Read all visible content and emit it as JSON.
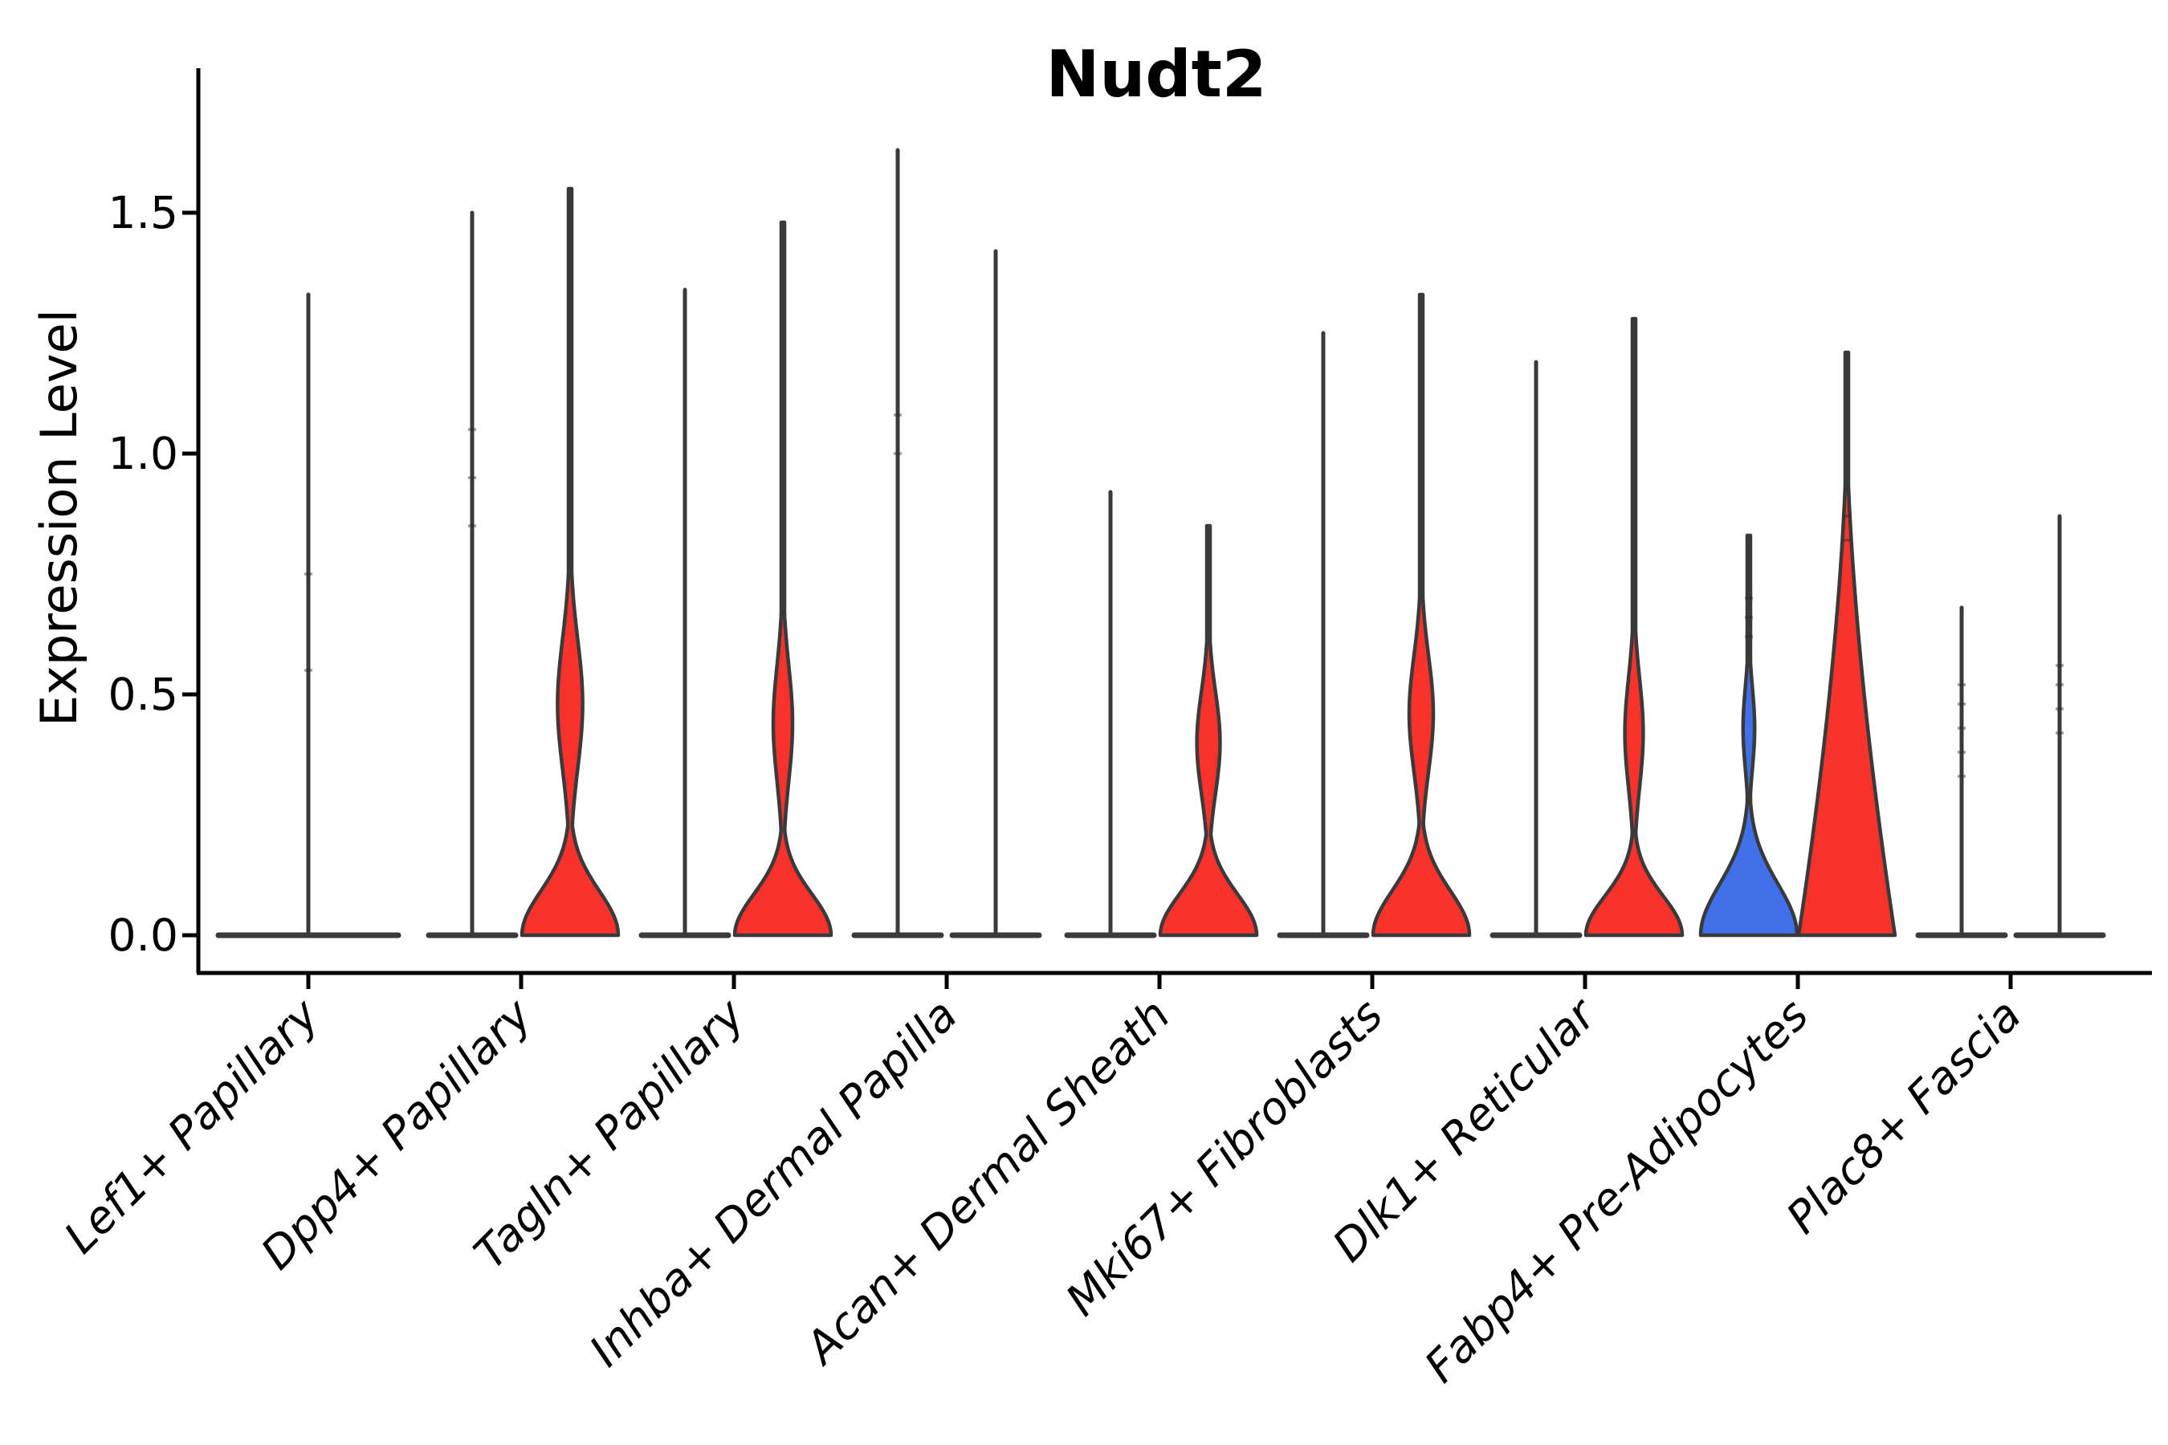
{
  "title": "Nudt2",
  "y_axis": {
    "label": "Expression Level",
    "ticks": [
      "0.0",
      "0.5",
      "1.0",
      "1.5"
    ],
    "tick_values": [
      0.0,
      0.5,
      1.0,
      1.5
    ]
  },
  "colors": {
    "red": "#F9322C",
    "blue": "#4170EB",
    "outline": "#3A3A3A",
    "axis": "#000000"
  },
  "chart_data": {
    "type": "violin",
    "title": "Nudt2",
    "xlabel": "",
    "ylabel": "Expression Level",
    "ylim": [
      0,
      1.8
    ],
    "yticks": [
      0.0,
      0.5,
      1.0,
      1.5
    ],
    "grid": false,
    "legend": "none",
    "groups_per_category": 2,
    "description": "Split violin plot of Nudt2 expression per fibroblast cluster; most cells at 0 (flat violins with outlier spikes), some clusters show a low-expression bulge.",
    "categories": [
      {
        "label": "Lef1+ Papillary",
        "violins": [
          {
            "group": "full",
            "kind": "flat",
            "fill": "none",
            "max": 1.33,
            "points": [
              0.55,
              0.75
            ]
          }
        ]
      },
      {
        "label": "Dpp4+ Papillary",
        "violins": [
          {
            "group": "left",
            "kind": "flat",
            "fill": "none",
            "max": 1.5,
            "points": [
              0.85,
              0.95,
              1.05
            ]
          },
          {
            "group": "right",
            "kind": "bulge",
            "fill": "red",
            "max": 1.55,
            "bulge_center": 0.48,
            "bulge_sd": 0.19,
            "bulge_halfwidth": 0.26,
            "base_sd": 0.13
          }
        ]
      },
      {
        "label": "Tagln+ Papillary",
        "violins": [
          {
            "group": "left",
            "kind": "flat",
            "fill": "none",
            "max": 1.34,
            "points": []
          },
          {
            "group": "right",
            "kind": "bulge",
            "fill": "red",
            "max": 1.48,
            "bulge_center": 0.44,
            "bulge_sd": 0.17,
            "bulge_halfwidth": 0.2,
            "base_sd": 0.12
          }
        ]
      },
      {
        "label": "Inhba+ Dermal Papilla",
        "violins": [
          {
            "group": "left",
            "kind": "flat",
            "fill": "none",
            "max": 1.63,
            "points": [
              1.0,
              1.08
            ]
          },
          {
            "group": "right",
            "kind": "flat",
            "fill": "none",
            "max": 1.42,
            "points": []
          }
        ]
      },
      {
        "label": "Acan+ Dermal Sheath",
        "violins": [
          {
            "group": "left",
            "kind": "flat",
            "fill": "none",
            "max": 0.92,
            "points": []
          },
          {
            "group": "right",
            "kind": "bulge",
            "fill": "red",
            "max": 0.85,
            "bulge_center": 0.4,
            "bulge_sd": 0.15,
            "bulge_halfwidth": 0.24,
            "base_sd": 0.12
          }
        ]
      },
      {
        "label": "Mki67+ Fibroblasts",
        "violins": [
          {
            "group": "left",
            "kind": "flat",
            "fill": "none",
            "max": 1.25,
            "points": []
          },
          {
            "group": "right",
            "kind": "bulge",
            "fill": "red",
            "max": 1.33,
            "bulge_center": 0.46,
            "bulge_sd": 0.17,
            "bulge_halfwidth": 0.25,
            "base_sd": 0.13
          }
        ]
      },
      {
        "label": "Dlk1+ Reticular",
        "violins": [
          {
            "group": "left",
            "kind": "flat",
            "fill": "none",
            "max": 1.19,
            "points": []
          },
          {
            "group": "right",
            "kind": "bulge",
            "fill": "red",
            "max": 1.28,
            "bulge_center": 0.42,
            "bulge_sd": 0.16,
            "bulge_halfwidth": 0.19,
            "base_sd": 0.115
          }
        ]
      },
      {
        "label": "Fabp4+ Pre-Adipocytes",
        "violins": [
          {
            "group": "left",
            "kind": "bulge",
            "fill": "blue",
            "max": 0.83,
            "bulge_center": 0.43,
            "bulge_sd": 0.12,
            "bulge_halfwidth": 0.12,
            "base_sd": 0.15,
            "points": [
              0.62,
              0.66,
              0.7
            ]
          },
          {
            "group": "right",
            "kind": "cone",
            "fill": "red",
            "max": 1.21,
            "tip": 1.06,
            "power": 1.6,
            "points": [
              0.82,
              0.87
            ]
          }
        ]
      },
      {
        "label": "Plac8+ Fascia",
        "violins": [
          {
            "group": "left",
            "kind": "flat",
            "fill": "none",
            "max": 0.68,
            "points": [
              0.33,
              0.38,
              0.43,
              0.48,
              0.52
            ]
          },
          {
            "group": "right",
            "kind": "flat",
            "fill": "none",
            "max": 0.87,
            "points": [
              0.42,
              0.47,
              0.52,
              0.56
            ]
          }
        ]
      }
    ]
  }
}
